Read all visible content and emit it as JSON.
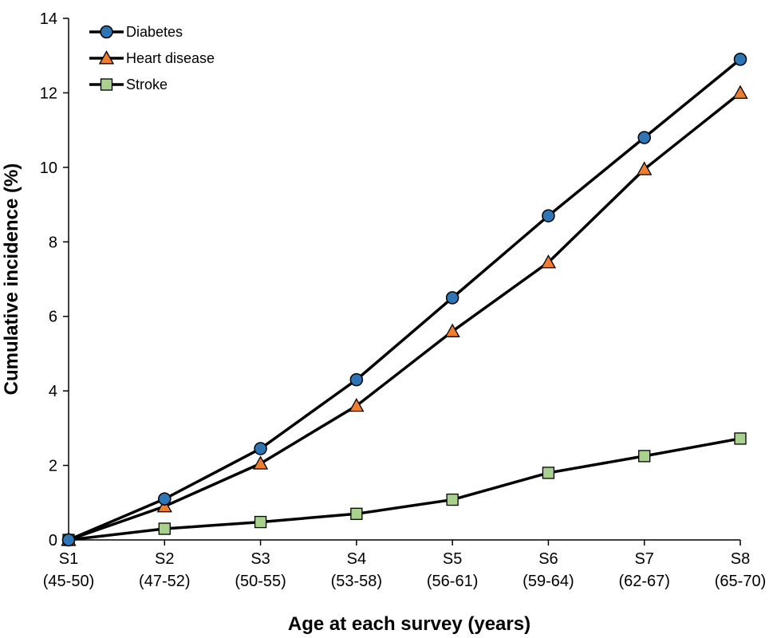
{
  "chart_data": {
    "type": "line",
    "categories": [
      [
        "S1",
        "(45-50)"
      ],
      [
        "S2",
        "(47-52)"
      ],
      [
        "S3",
        "(50-55)"
      ],
      [
        "S4",
        "(53-58)"
      ],
      [
        "S5",
        "(56-61)"
      ],
      [
        "S6",
        "(59-64)"
      ],
      [
        "S7",
        "(62-67)"
      ],
      [
        "S8",
        "(65-70)"
      ]
    ],
    "series": [
      {
        "name": "Diabetes",
        "marker": "circle",
        "color": "#2E75B6",
        "values": [
          0,
          1.1,
          2.45,
          4.3,
          6.5,
          8.7,
          10.8,
          12.9
        ]
      },
      {
        "name": "Heart disease",
        "marker": "triangle",
        "color": "#ED7D31",
        "values": [
          0,
          0.9,
          2.05,
          3.6,
          5.6,
          7.45,
          9.95,
          12.0
        ]
      },
      {
        "name": "Stroke",
        "marker": "square",
        "color": "#A9D18E",
        "values": [
          0,
          0.3,
          0.48,
          0.7,
          1.08,
          1.8,
          2.25,
          2.72
        ]
      }
    ],
    "xlabel": "Age at each survey (years)",
    "ylabel": "Cumulative incidence (%)",
    "ylim": [
      0,
      14
    ],
    "yticks": [
      0,
      2,
      4,
      6,
      8,
      10,
      12,
      14
    ],
    "grid": false,
    "legend_position": "top-left"
  }
}
